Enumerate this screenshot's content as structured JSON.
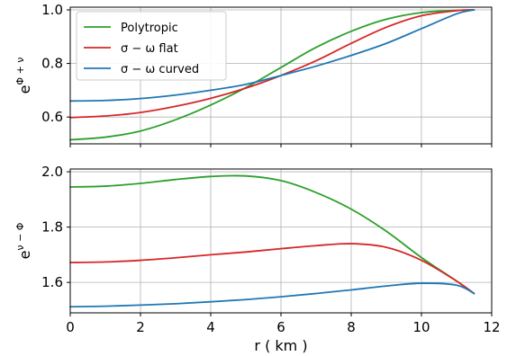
{
  "chart_data": [
    {
      "type": "line",
      "ylabel": "e^{Φ+ν}",
      "ylabel_base": "e",
      "ylabel_sup": "Φ + ν",
      "xlim": [
        0,
        12
      ],
      "ylim": [
        0.5,
        1.01
      ],
      "xticks": [
        "0",
        "2",
        "4",
        "6",
        "8",
        "10",
        "12"
      ],
      "yticks": [
        0.6,
        0.8,
        1.0
      ],
      "ytick_labels": [
        "0.6",
        "0.8",
        "1.0"
      ],
      "grid": true,
      "legend": "top-left",
      "series": [
        {
          "name": "Polytropic",
          "color": "#2ca02c",
          "x": [
            0,
            1,
            2,
            3,
            4,
            5,
            6,
            7,
            8,
            9,
            10,
            11,
            11.5
          ],
          "y": [
            0.515,
            0.525,
            0.548,
            0.59,
            0.645,
            0.71,
            0.785,
            0.86,
            0.92,
            0.965,
            0.99,
            0.998,
            1.0
          ]
        },
        {
          "name": "σ − ω flat",
          "color": "#d62728",
          "x": [
            0,
            1,
            2,
            3,
            4,
            5,
            6,
            7,
            8,
            9,
            10,
            11,
            11.5
          ],
          "y": [
            0.598,
            0.604,
            0.617,
            0.64,
            0.67,
            0.708,
            0.755,
            0.81,
            0.875,
            0.935,
            0.978,
            0.997,
            1.0
          ]
        },
        {
          "name": "σ − ω curved",
          "color": "#1f77b4",
          "x": [
            0,
            1,
            2,
            3,
            4,
            5,
            6,
            7,
            8,
            9,
            10,
            11,
            11.5
          ],
          "y": [
            0.66,
            0.662,
            0.669,
            0.682,
            0.7,
            0.722,
            0.755,
            0.79,
            0.83,
            0.875,
            0.93,
            0.985,
            1.0
          ]
        }
      ]
    },
    {
      "type": "line",
      "ylabel": "e^{ν−Φ}",
      "ylabel_base": "e",
      "ylabel_sup": "ν − Φ",
      "xlabel": "r ( km )",
      "xlim": [
        0,
        12
      ],
      "ylim": [
        1.49,
        2.01
      ],
      "xticks": [
        "0",
        "2",
        "4",
        "6",
        "8",
        "10",
        "12"
      ],
      "yticks": [
        1.6,
        1.8,
        2.0
      ],
      "ytick_labels": [
        "1.6",
        "1.8",
        "2.0"
      ],
      "grid": true,
      "series": [
        {
          "name": "Polytropic",
          "color": "#2ca02c",
          "x": [
            0,
            1,
            2,
            3,
            4,
            5,
            6,
            7,
            8,
            9,
            10,
            11,
            11.5
          ],
          "y": [
            1.945,
            1.948,
            1.958,
            1.972,
            1.983,
            1.985,
            1.968,
            1.925,
            1.865,
            1.785,
            1.69,
            1.605,
            1.56
          ]
        },
        {
          "name": "σ − ω flat",
          "color": "#d62728",
          "x": [
            0,
            1,
            2,
            3,
            4,
            5,
            6,
            7,
            8,
            9,
            10,
            11,
            11.5
          ],
          "y": [
            1.672,
            1.674,
            1.68,
            1.689,
            1.7,
            1.71,
            1.722,
            1.733,
            1.74,
            1.727,
            1.68,
            1.605,
            1.56
          ]
        },
        {
          "name": "σ − ω curved",
          "color": "#1f77b4",
          "x": [
            0,
            1,
            2,
            3,
            4,
            5,
            6,
            7,
            8,
            9,
            10,
            11,
            11.5
          ],
          "y": [
            1.512,
            1.514,
            1.518,
            1.523,
            1.53,
            1.538,
            1.548,
            1.56,
            1.573,
            1.587,
            1.597,
            1.59,
            1.56
          ]
        }
      ]
    }
  ]
}
